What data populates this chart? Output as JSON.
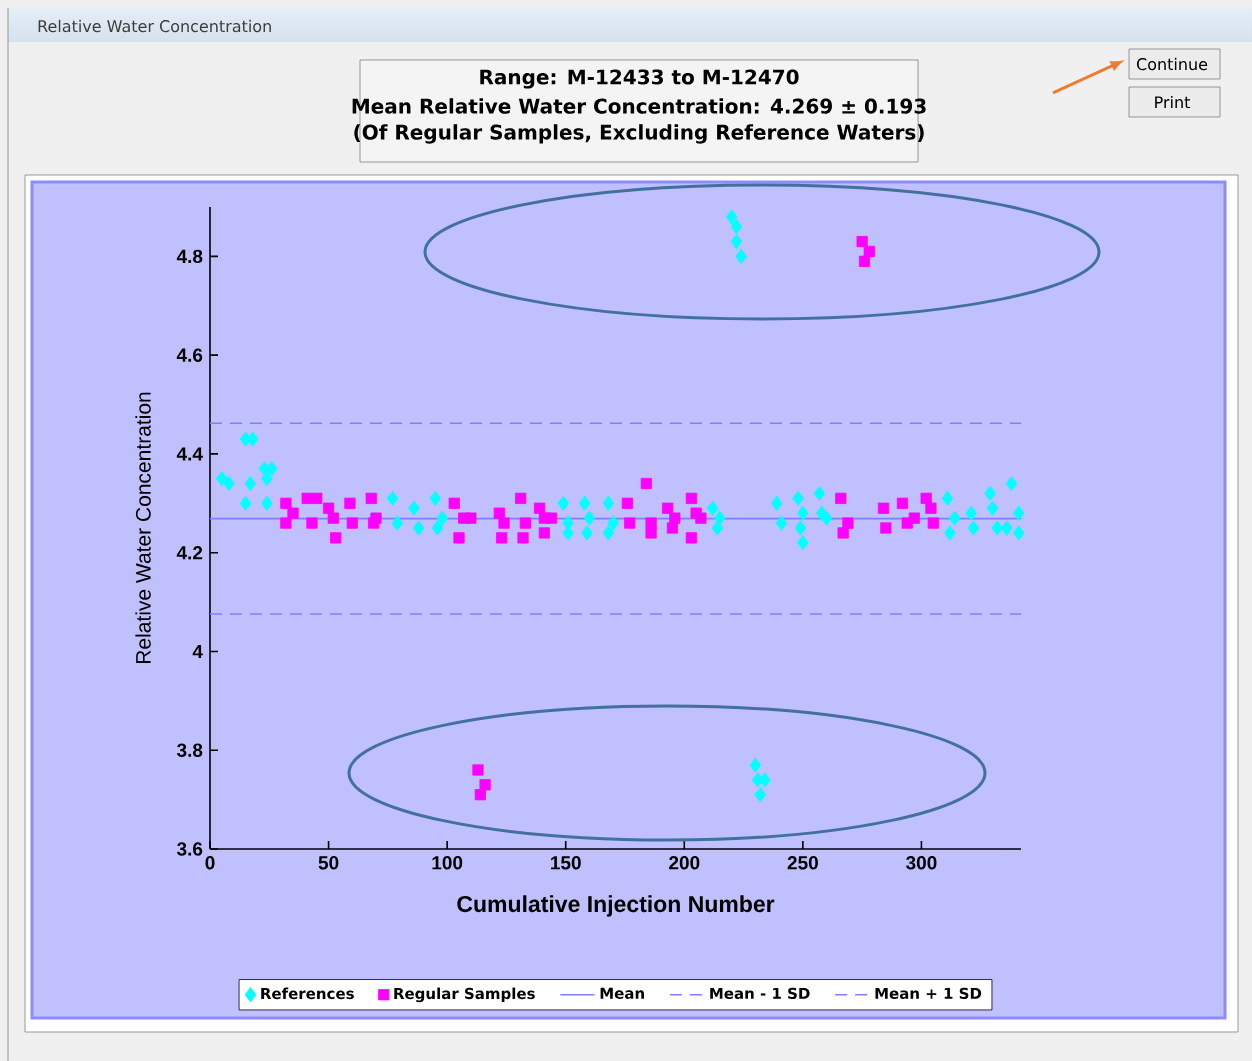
{
  "chart_data": {
    "type": "scatter",
    "title": "Relative Water Concentration",
    "annotations": [
      "Range: M-12433 to M-12470",
      "Mean Relative Water Concentration: 4.269 ± 0.193",
      "(Of Regular Samples, Excluding Reference Waters)",
      "Continue",
      "Print"
    ],
    "xlabel": "Cumulative Injection Number",
    "ylabel": "Relative Water Concentration",
    "xlim": [
      0,
      342
    ],
    "ylim": [
      3.6,
      4.9
    ],
    "xticks": [
      0,
      50,
      100,
      150,
      200,
      250,
      300
    ],
    "yticks": [
      3.6,
      3.8,
      4,
      4.2,
      4.4,
      4.6,
      4.8
    ],
    "legend": "bottom",
    "series": [
      {
        "name": "References",
        "color": "#00ffff",
        "marker": "diamond",
        "x": [
          5,
          8,
          15,
          18,
          17,
          15,
          23,
          26,
          24,
          24,
          77,
          79,
          86,
          88,
          95,
          96,
          98,
          149,
          151,
          151,
          158,
          160,
          159,
          168,
          170,
          168,
          212,
          215,
          214,
          220,
          222,
          222,
          224,
          230,
          231,
          234,
          232,
          239,
          241,
          248,
          250,
          249,
          250,
          257,
          258,
          260,
          311,
          314,
          312,
          321,
          322,
          329,
          330,
          332,
          338,
          341,
          341,
          336
        ],
        "values": [
          4.35,
          4.34,
          4.43,
          4.43,
          4.34,
          4.3,
          4.37,
          4.37,
          4.35,
          4.3,
          4.31,
          4.26,
          4.29,
          4.25,
          4.31,
          4.25,
          4.27,
          4.3,
          4.26,
          4.24,
          4.3,
          4.27,
          4.24,
          4.3,
          4.26,
          4.24,
          4.29,
          4.27,
          4.25,
          4.88,
          4.86,
          4.83,
          4.8,
          3.77,
          3.74,
          3.74,
          3.71,
          4.3,
          4.26,
          4.31,
          4.28,
          4.25,
          4.22,
          4.32,
          4.28,
          4.27,
          4.31,
          4.27,
          4.24,
          4.28,
          4.25,
          4.32,
          4.29,
          4.25,
          4.34,
          4.28,
          4.24,
          4.25
        ]
      },
      {
        "name": "Regular Samples",
        "color": "#ff00ff",
        "marker": "square",
        "x": [
          32,
          32,
          35,
          41,
          43,
          45,
          50,
          52,
          53,
          59,
          60,
          68,
          69,
          70,
          103,
          105,
          107,
          110,
          113,
          116,
          114,
          122,
          123,
          124,
          131,
          132,
          133,
          139,
          141,
          141,
          144,
          176,
          177,
          184,
          186,
          186,
          193,
          195,
          196,
          203,
          203,
          205,
          207,
          266,
          267,
          269,
          275,
          276,
          278,
          284,
          285,
          292,
          294,
          297,
          302,
          304,
          305
        ],
        "values": [
          4.3,
          4.26,
          4.28,
          4.31,
          4.26,
          4.31,
          4.29,
          4.27,
          4.23,
          4.3,
          4.26,
          4.31,
          4.26,
          4.27,
          4.3,
          4.23,
          4.27,
          4.27,
          3.76,
          3.73,
          3.71,
          4.28,
          4.23,
          4.26,
          4.31,
          4.23,
          4.26,
          4.29,
          4.27,
          4.24,
          4.27,
          4.3,
          4.26,
          4.34,
          4.26,
          4.24,
          4.29,
          4.25,
          4.27,
          4.31,
          4.23,
          4.28,
          4.27,
          4.31,
          4.24,
          4.26,
          4.83,
          4.79,
          4.81,
          4.29,
          4.25,
          4.3,
          4.26,
          4.27,
          4.31,
          4.29,
          4.26
        ]
      }
    ],
    "ref_lines": [
      {
        "axis": "y",
        "value": 4.269,
        "label": "Mean",
        "color": "#8080ff",
        "line_style": "solid"
      },
      {
        "axis": "y",
        "value": 4.076,
        "label": "Mean - 1 SD",
        "color": "#8080ff",
        "line_style": "dashed"
      },
      {
        "axis": "y",
        "value": 4.462,
        "label": "Mean + 1 SD",
        "color": "#8080ff",
        "line_style": "dashed"
      }
    ]
  }
}
